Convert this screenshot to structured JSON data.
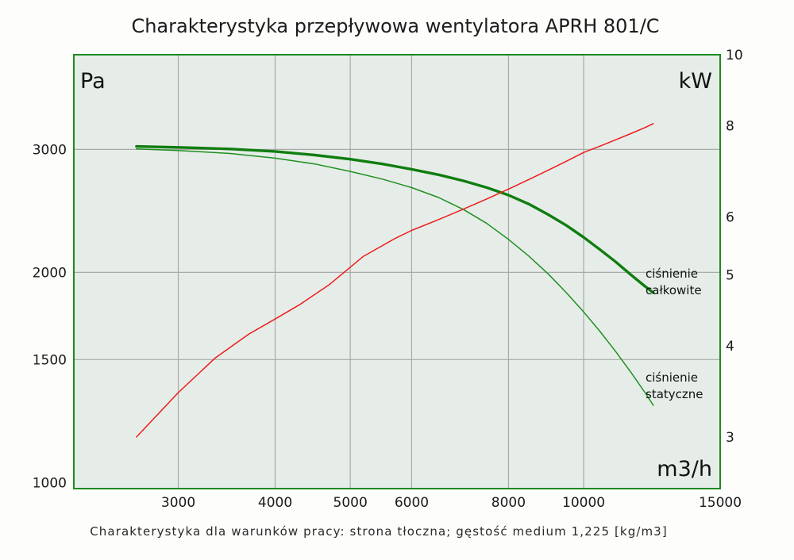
{
  "title": "Charakterystyka przepływowa wentylatora APRH 801/C",
  "footnote": "Charakterystyka dla warunków pracy: strona tłoczna; gęstość medium 1,225 [kg/m3]",
  "colors": {
    "plot_background": "#e6ede8",
    "frame": "#1f8a1f",
    "grid": "#a9a9a9",
    "total_pressure": "#0f7d0f",
    "static_pressure": "#1f8f1f",
    "power": "#ee1c1c"
  },
  "chart_data": {
    "type": "line",
    "title": "Charakterystyka przepływowa wentylatora APRH 801/C",
    "xlabel": "m3/h",
    "ylabel": "Pa",
    "y2label": "kW",
    "xscale": "log",
    "yscale": "log",
    "y2scale": "log",
    "xlim": [
      2200,
      15000
    ],
    "ylim": [
      980,
      4100
    ],
    "y2lim": [
      2.55,
      10
    ],
    "x_ticks": [
      3000,
      4000,
      5000,
      6000,
      8000,
      10000,
      15000
    ],
    "y_ticks": [
      1000,
      1500,
      2000,
      3000
    ],
    "y2_ticks": [
      3,
      4,
      5,
      6,
      8,
      10
    ],
    "x_gridlines": [
      3000,
      4000,
      5000,
      6000,
      8000,
      10000
    ],
    "y_gridlines": [
      1500,
      2000,
      3000
    ],
    "grid": true,
    "series": [
      {
        "name": "ciśnienie całkowite",
        "axis": "left",
        "x": [
          2650,
          3000,
          3500,
          4000,
          4500,
          5000,
          5500,
          6000,
          6500,
          7000,
          7500,
          8000,
          8500,
          9000,
          9500,
          10000,
          10500,
          11000,
          11500,
          12000,
          12300
        ],
        "y": [
          3030,
          3020,
          3005,
          2980,
          2945,
          2905,
          2860,
          2810,
          2760,
          2705,
          2645,
          2580,
          2505,
          2420,
          2335,
          2245,
          2155,
          2070,
          1985,
          1910,
          1870
        ]
      },
      {
        "name": "ciśnienie statyczne",
        "axis": "left",
        "x": [
          2650,
          3000,
          3500,
          4000,
          4500,
          5000,
          5500,
          6000,
          6500,
          7000,
          7500,
          8000,
          8500,
          9000,
          9500,
          10000,
          10500,
          11000,
          11500,
          12000,
          12300
        ],
        "y": [
          3005,
          2990,
          2960,
          2915,
          2860,
          2790,
          2720,
          2645,
          2560,
          2460,
          2350,
          2230,
          2110,
          1990,
          1870,
          1755,
          1645,
          1540,
          1440,
          1345,
          1290
        ]
      },
      {
        "name": "",
        "axis": "right",
        "x": [
          2650,
          3000,
          3350,
          3700,
          4000,
          4300,
          4700,
          5200,
          5700,
          6000,
          6500,
          7000,
          7500,
          8000,
          8500,
          9000,
          9500,
          10000,
          10500,
          11000,
          11500,
          12000,
          12300
        ],
        "y": [
          3.0,
          3.45,
          3.85,
          4.15,
          4.35,
          4.55,
          4.85,
          5.3,
          5.6,
          5.75,
          5.95,
          6.15,
          6.35,
          6.55,
          6.75,
          6.95,
          7.15,
          7.35,
          7.5,
          7.65,
          7.8,
          7.95,
          8.05
        ]
      }
    ]
  },
  "labels": {
    "left_unit": "Pa",
    "right_unit": "kW",
    "x_unit": "m3/h",
    "total_line1": "ciśnienie",
    "total_line2": "całkowite",
    "static_line1": "ciśnienie",
    "static_line2": "statyczne"
  }
}
